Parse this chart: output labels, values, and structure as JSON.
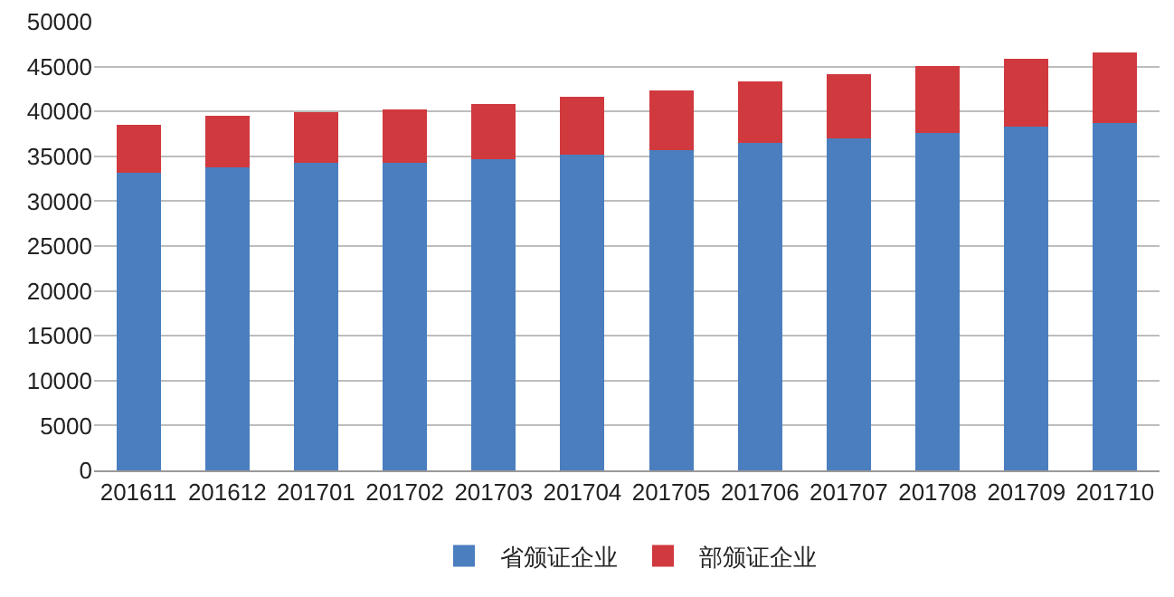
{
  "chart_data": {
    "type": "bar",
    "stacked": true,
    "categories": [
      "201611",
      "201612",
      "201701",
      "201702",
      "201703",
      "201704",
      "201705",
      "201706",
      "201707",
      "201708",
      "201709",
      "201710"
    ],
    "series": [
      {
        "name": "省颁证企业",
        "color": "#4a7ebf",
        "values": [
          33200,
          33800,
          34300,
          34300,
          34700,
          35200,
          35700,
          36500,
          37000,
          37600,
          38300,
          38700
        ]
      },
      {
        "name": "部颁证企业",
        "color": "#d0393e",
        "values": [
          5300,
          5700,
          5600,
          5900,
          6100,
          6400,
          6600,
          6800,
          7200,
          7500,
          7600,
          7900
        ]
      }
    ],
    "ylim": [
      0,
      50000
    ],
    "yticks": [
      0,
      5000,
      10000,
      15000,
      20000,
      25000,
      30000,
      35000,
      40000,
      45000,
      50000
    ],
    "grid": "y",
    "legend": "bottom"
  }
}
